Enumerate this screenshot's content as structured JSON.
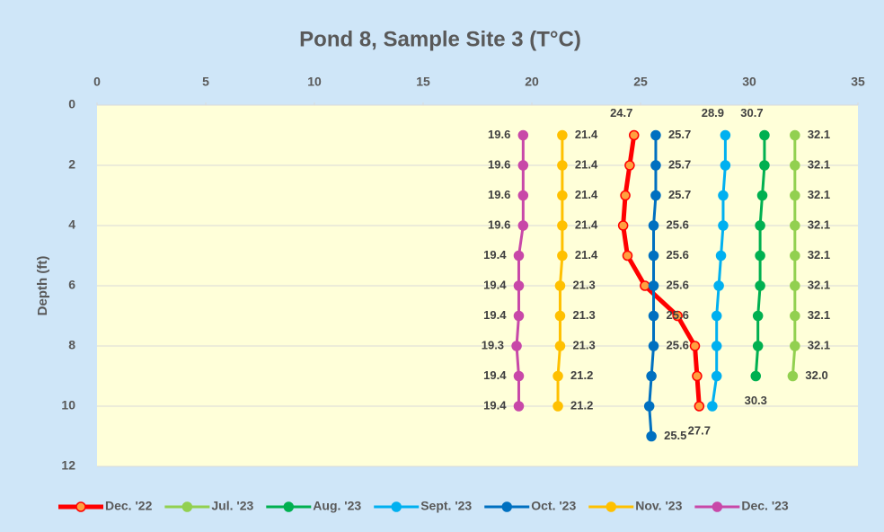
{
  "chart_data": {
    "type": "line",
    "orientation": "vertical-profile",
    "title": "Pond 8, Sample Site 3 (T°C)",
    "y_axis_label": "Depth (ft)",
    "xlim": [
      0,
      35
    ],
    "xticks": [
      0,
      5,
      10,
      15,
      20,
      25,
      30,
      35
    ],
    "x_axis_position": "top",
    "ylim": [
      0,
      12
    ],
    "yticks": [
      0,
      2,
      4,
      6,
      8,
      10,
      12
    ],
    "y_inverted": true,
    "grid": true,
    "legend": "bottom",
    "series": [
      {
        "name": "Dec. '22",
        "color": "#ff0000",
        "marker_fill": "#ffa040",
        "line_width": 5,
        "label_position": "above",
        "depths": [
          1,
          2,
          3,
          4,
          5,
          6,
          7,
          8,
          9,
          10
        ],
        "values": [
          24.7,
          24.5,
          24.3,
          24.2,
          24.4,
          25.2,
          26.7,
          27.5,
          27.6,
          27.7
        ],
        "value_labels": [
          "24.7",
          null,
          null,
          null,
          null,
          null,
          null,
          null,
          null,
          "27.7"
        ]
      },
      {
        "name": "Jul. '23",
        "color": "#92d050",
        "marker_fill": "#92d050",
        "line_width": 3,
        "label_position": "right",
        "depths": [
          1,
          2,
          3,
          4,
          5,
          6,
          7,
          8,
          9
        ],
        "values": [
          32.1,
          32.1,
          32.1,
          32.1,
          32.1,
          32.1,
          32.1,
          32.1,
          32.0
        ],
        "value_labels": [
          "32.1",
          "32.1",
          "32.1",
          "32.1",
          "32.1",
          "32.1",
          "32.1",
          "32.1",
          "32.0"
        ]
      },
      {
        "name": "Aug. '23",
        "color": "#00b050",
        "marker_fill": "#00b050",
        "line_width": 3,
        "label_position": "above",
        "depths": [
          1,
          2,
          3,
          4,
          5,
          6,
          7,
          8,
          9
        ],
        "values": [
          30.7,
          30.7,
          30.6,
          30.5,
          30.5,
          30.5,
          30.4,
          30.4,
          30.3
        ],
        "value_labels": [
          "30.7",
          null,
          null,
          null,
          null,
          null,
          null,
          null,
          "30.3"
        ]
      },
      {
        "name": "Sept. '23",
        "color": "#00b0f0",
        "marker_fill": "#00b0f0",
        "line_width": 3,
        "label_position": "above",
        "depths": [
          1,
          2,
          3,
          4,
          5,
          6,
          7,
          8,
          9,
          10
        ],
        "values": [
          28.9,
          28.9,
          28.8,
          28.8,
          28.7,
          28.6,
          28.5,
          28.5,
          28.5,
          28.3
        ],
        "value_labels": [
          "28.9",
          null,
          null,
          null,
          null,
          null,
          null,
          null,
          null,
          null
        ]
      },
      {
        "name": "Oct. '23",
        "color": "#0070c0",
        "marker_fill": "#0070c0",
        "line_width": 3,
        "label_position": "right",
        "depths": [
          1,
          2,
          3,
          4,
          5,
          6,
          7,
          8,
          9,
          10,
          11
        ],
        "values": [
          25.7,
          25.7,
          25.7,
          25.6,
          25.6,
          25.6,
          25.6,
          25.6,
          25.5,
          25.4,
          25.5
        ],
        "value_labels": [
          "25.7",
          "25.7",
          "25.7",
          "25.6",
          "25.6",
          "25.6",
          "25.6",
          "25.6",
          null,
          null,
          "25.5"
        ]
      },
      {
        "name": "Nov. '23",
        "color": "#ffc000",
        "marker_fill": "#ffc000",
        "line_width": 3,
        "label_position": "right",
        "depths": [
          1,
          2,
          3,
          4,
          5,
          6,
          7,
          8,
          9,
          10
        ],
        "values": [
          21.4,
          21.4,
          21.4,
          21.4,
          21.4,
          21.3,
          21.3,
          21.3,
          21.2,
          21.2
        ],
        "value_labels": [
          "21.4",
          "21.4",
          "21.4",
          "21.4",
          "21.4",
          "21.3",
          "21.3",
          "21.3",
          "21.2",
          "21.2"
        ]
      },
      {
        "name": "Dec. '23",
        "color": "#c848a8",
        "marker_fill": "#c848a8",
        "line_width": 3,
        "label_position": "left",
        "depths": [
          1,
          2,
          3,
          4,
          5,
          6,
          7,
          8,
          9,
          10
        ],
        "values": [
          19.6,
          19.6,
          19.6,
          19.6,
          19.4,
          19.4,
          19.4,
          19.3,
          19.4,
          19.4
        ],
        "value_labels": [
          "19.6",
          "19.6",
          "19.6",
          "19.6",
          "19.4",
          "19.4",
          "19.4",
          "19.3",
          "19.4",
          "19.4"
        ]
      }
    ]
  }
}
